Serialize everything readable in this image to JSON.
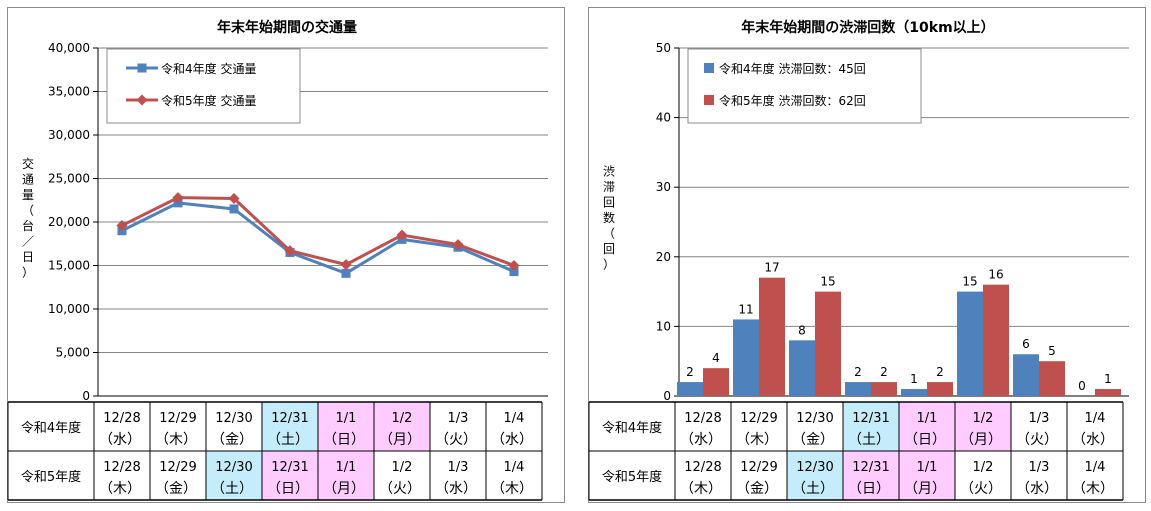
{
  "colors": {
    "r4": "#4f81bd",
    "r5": "#c0504d",
    "weekend_blue": "#c5ecfb",
    "holiday_pink": "#ffccff",
    "grid": "#868686"
  },
  "table_rows": [
    {
      "label": "令和4年度",
      "cells": [
        {
          "date": "12/28",
          "dow": "（水）",
          "shade": "none"
        },
        {
          "date": "12/29",
          "dow": "（木）",
          "shade": "none"
        },
        {
          "date": "12/30",
          "dow": "（金）",
          "shade": "none"
        },
        {
          "date": "12/31",
          "dow": "（土）",
          "shade": "blue"
        },
        {
          "date": "1/1",
          "dow": "（日）",
          "shade": "pink"
        },
        {
          "date": "1/2",
          "dow": "（月）",
          "shade": "pink"
        },
        {
          "date": "1/3",
          "dow": "（火）",
          "shade": "none"
        },
        {
          "date": "1/4",
          "dow": "（水）",
          "shade": "none"
        }
      ]
    },
    {
      "label": "令和5年度",
      "cells": [
        {
          "date": "12/28",
          "dow": "（木）",
          "shade": "none"
        },
        {
          "date": "12/29",
          "dow": "（金）",
          "shade": "none"
        },
        {
          "date": "12/30",
          "dow": "（土）",
          "shade": "blue"
        },
        {
          "date": "12/31",
          "dow": "（日）",
          "shade": "pink"
        },
        {
          "date": "1/1",
          "dow": "（月）",
          "shade": "pink"
        },
        {
          "date": "1/2",
          "dow": "（火）",
          "shade": "none"
        },
        {
          "date": "1/3",
          "dow": "（水）",
          "shade": "none"
        },
        {
          "date": "1/4",
          "dow": "（木）",
          "shade": "none"
        }
      ]
    }
  ],
  "chart_data": [
    {
      "type": "line",
      "title": "年末年始期間の交通量",
      "ylabel": "交通量（台／日）",
      "ylim": [
        0,
        40000
      ],
      "yticks": [
        0,
        5000,
        10000,
        15000,
        20000,
        25000,
        30000,
        35000,
        40000
      ],
      "ytick_labels": [
        "0",
        "5,000",
        "10,000",
        "15,000",
        "20,000",
        "25,000",
        "30,000",
        "35,000",
        "40,000"
      ],
      "grid": true,
      "legend_position": "top-left",
      "series": [
        {
          "name": "令和4年度 交通量",
          "values": [
            19000,
            22200,
            21500,
            16500,
            14100,
            18000,
            17100,
            14300
          ]
        },
        {
          "name": "令和5年度 交通量",
          "values": [
            19600,
            22800,
            22700,
            16700,
            15100,
            18500,
            17400,
            15000
          ]
        }
      ]
    },
    {
      "type": "bar",
      "title": "年末年始期間の渋滞回数（10km以上）",
      "ylabel": "渋滞回数（回）",
      "ylim": [
        0,
        50
      ],
      "yticks": [
        0,
        10,
        20,
        30,
        40,
        50
      ],
      "ytick_labels": [
        "0",
        "10",
        "20",
        "30",
        "40",
        "50"
      ],
      "grid": true,
      "legend_position": "top-left",
      "series": [
        {
          "name": "令和4年度 渋滞回数：45回",
          "values": [
            2,
            11,
            8,
            2,
            1,
            15,
            6,
            0
          ],
          "labels": [
            "2",
            "11",
            "8",
            "2",
            "1",
            "15",
            "6",
            "0"
          ]
        },
        {
          "name": "令和5年度 渋滞回数：62回",
          "values": [
            4,
            17,
            15,
            2,
            2,
            16,
            5,
            1
          ],
          "labels": [
            "4",
            "17",
            "15",
            "2",
            "2",
            "16",
            "5",
            "1"
          ]
        }
      ]
    }
  ]
}
